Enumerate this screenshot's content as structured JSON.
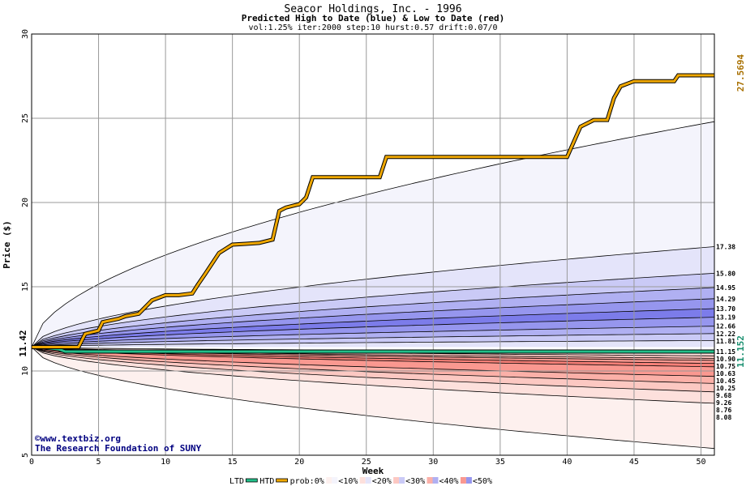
{
  "header": {
    "title": "Seacor Holdings, Inc. - 1996",
    "subtitle": "Predicted High to Date (blue) &  Low to Date (red)",
    "params": "vol:1.25% iter:2000 step:10 hurst:0.57 drift:0.07/0"
  },
  "credit": {
    "line1": "©www.textbiz.org",
    "line2": "The Research Foundation of SUNY"
  },
  "legend": {
    "ltd": "LTD",
    "htd": "HTD",
    "prob_prefix": "prob:0%",
    "bands": [
      "<10%",
      "<20%",
      "<30%",
      "<40%",
      "<50%"
    ]
  },
  "colors": {
    "ltd": "#22c08a",
    "htd": "#f0a800",
    "grid": "#999999",
    "value_high": "#a87000",
    "value_low": "#1a9070",
    "axis_text": "#000000",
    "credit_text": "#000080",
    "blue_bands": [
      "#f4f4fc",
      "#e4e4fa",
      "#cacaf6",
      "#b0b0f2",
      "#9696ee",
      "#7c7cea"
    ],
    "red_bands": [
      "#fdf0ee",
      "#fde0dc",
      "#fcc8c2",
      "#fbb0a8",
      "#fa9890",
      "#f98078"
    ]
  },
  "chart_data": {
    "type": "area",
    "xlabel": "Week",
    "ylabel": "Price ($)",
    "xlim": [
      0,
      51
    ],
    "ylim": [
      5,
      30
    ],
    "x_ticks": [
      0,
      5,
      10,
      15,
      20,
      25,
      30,
      35,
      40,
      45,
      50
    ],
    "y_ticks": [
      5,
      10,
      15,
      20,
      25,
      30
    ],
    "grid": true,
    "start_price": "11.42",
    "start_value": 11.42,
    "high_final_label": "27.5694",
    "low_final_label": "11.152",
    "upper_band_final_values": [
      24.8,
      17.38,
      15.8,
      14.95,
      14.29,
      13.7,
      13.19,
      12.66,
      12.22,
      11.81
    ],
    "upper_band_labels": [
      "17.38",
      "15.80",
      "14.95",
      "14.29",
      "13.70",
      "13.19",
      "12.66",
      "12.22",
      "11.81"
    ],
    "lower_band_final_values": [
      11.15,
      10.9,
      10.75,
      10.63,
      10.45,
      10.25,
      9.68,
      9.26,
      8.76,
      8.08,
      5.4
    ],
    "lower_band_labels": [
      "11.15",
      "10.90",
      "10.75",
      "10.63",
      "10.45",
      "10.25",
      "9.68",
      "9.26",
      "8.76",
      "8.08"
    ],
    "htd_series": {
      "name": "HTD",
      "x": [
        0,
        2,
        3.5,
        4,
        5,
        5.3,
        6.5,
        7,
        8,
        9,
        10,
        11,
        12,
        12.4,
        13,
        14,
        15,
        16,
        17,
        18,
        18.5,
        19,
        20,
        20.5,
        21,
        26,
        26.5,
        33,
        40,
        41,
        42,
        43,
        43.5,
        44,
        45,
        48,
        48.3,
        51
      ],
      "y": [
        11.42,
        11.42,
        11.42,
        12.2,
        12.4,
        12.9,
        13.1,
        13.25,
        13.4,
        14.2,
        14.5,
        14.5,
        14.6,
        15.1,
        15.8,
        17.0,
        17.5,
        17.55,
        17.6,
        17.8,
        19.5,
        19.7,
        19.9,
        20.3,
        21.5,
        21.5,
        22.7,
        22.7,
        22.7,
        24.5,
        24.9,
        24.9,
        26.2,
        26.9,
        27.2,
        27.2,
        27.55,
        27.55
      ]
    },
    "ltd_series": {
      "name": "LTD",
      "x": [
        0,
        1,
        2,
        2.5,
        51
      ],
      "y": [
        11.42,
        11.38,
        11.3,
        11.152,
        11.152
      ]
    }
  }
}
